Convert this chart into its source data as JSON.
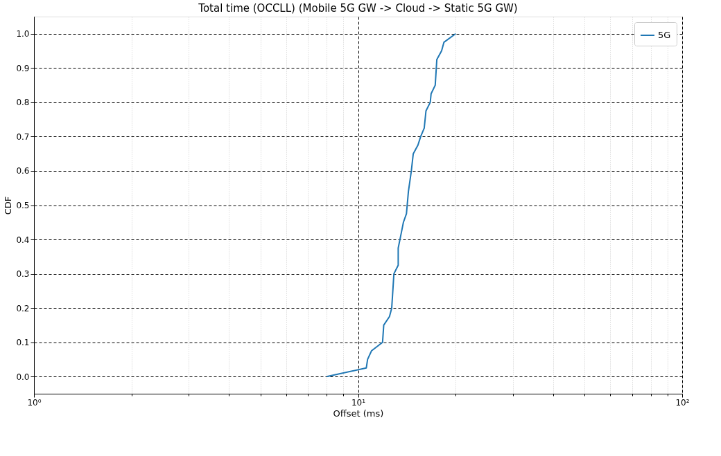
{
  "chart_data": {
    "type": "line",
    "title": "Total time (OCCLL) (Mobile 5G GW -> Cloud -> Static 5G GW)",
    "xlabel": "Offset (ms)",
    "ylabel": "CDF",
    "log": "x",
    "grid": true,
    "legend": "top right",
    "marker": "none",
    "line_style": "solid",
    "xlim": [
      1,
      100
    ],
    "xticks": [
      {
        "value": 1,
        "label": "10⁰"
      },
      {
        "value": 2,
        "label": null
      },
      {
        "value": 3,
        "label": null
      },
      {
        "value": 4,
        "label": null
      },
      {
        "value": 5,
        "label": null
      },
      {
        "value": 6,
        "label": null
      },
      {
        "value": 7,
        "label": null
      },
      {
        "value": 8,
        "label": null
      },
      {
        "value": 9,
        "label": null
      },
      {
        "value": 10,
        "label": "10¹"
      },
      {
        "value": 20,
        "label": null
      },
      {
        "value": 30,
        "label": null
      },
      {
        "value": 40,
        "label": null
      },
      {
        "value": 50,
        "label": null
      },
      {
        "value": 60,
        "label": null
      },
      {
        "value": 70,
        "label": null
      },
      {
        "value": 80,
        "label": null
      },
      {
        "value": 90,
        "label": null
      },
      {
        "value": 100,
        "label": "10²"
      }
    ],
    "ylim": [
      -0.05,
      1.05
    ],
    "yticks": [
      {
        "value": 0,
        "label": "0.0"
      },
      0.1,
      0.2,
      0.3,
      0.4,
      0.5,
      0.6,
      0.7,
      0.8,
      0.9,
      {
        "value": 1,
        "label": "1.0"
      }
    ],
    "series": [
      {
        "name": "5G",
        "color": "#1f77b4",
        "x": [
          8.0,
          10.6,
          10.7,
          11.0,
          11.9,
          12.0,
          12.5,
          12.7,
          12.8,
          12.9,
          13.3,
          13.3,
          13.6,
          13.8,
          14.1,
          14.3,
          14.6,
          14.8,
          15.3,
          15.6,
          16.0,
          16.2,
          16.7,
          16.8,
          17.3,
          17.5,
          18.1,
          18.4,
          20.0
        ],
        "values": [
          0.0,
          0.025,
          0.05,
          0.075,
          0.1,
          0.15,
          0.175,
          0.2,
          0.25,
          0.3,
          0.325,
          0.375,
          0.42,
          0.45,
          0.475,
          0.54,
          0.6,
          0.65,
          0.675,
          0.7,
          0.725,
          0.775,
          0.8,
          0.825,
          0.85,
          0.925,
          0.95,
          0.975,
          1.0
        ]
      }
    ]
  }
}
